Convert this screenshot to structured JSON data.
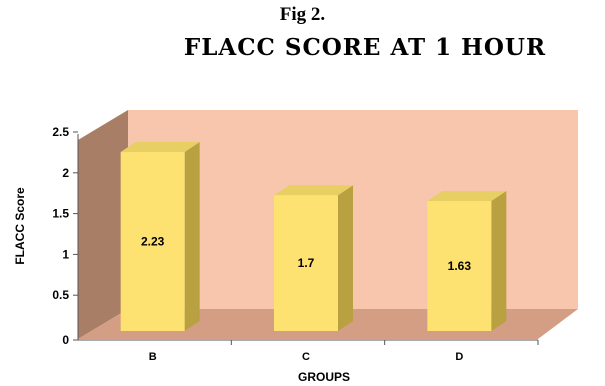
{
  "figure": {
    "label": "Fig 2."
  },
  "chart_data": {
    "type": "bar",
    "title": "FLACC  SCORE AT 1 HOUR",
    "xlabel": "GROUPS",
    "ylabel": "FLACC Score",
    "categories": [
      "B",
      "C",
      "D"
    ],
    "values": [
      2.23,
      1.7,
      1.63
    ],
    "data_labels": [
      "2.23",
      "1.7",
      "1.63"
    ],
    "ylim": [
      0,
      2.5
    ],
    "yticks": [
      "0",
      "0.5",
      "1",
      "1.5",
      "2",
      "2.5"
    ],
    "grid": false,
    "legend": "none",
    "style": "3d-column",
    "colors": {
      "bar_front": "#fde272",
      "bar_side": "#b9a040",
      "bar_top": "#e8cf64",
      "back_wall": "#f7c6ac",
      "side_wall": "#a87e66",
      "floor": "#d39e83"
    }
  }
}
